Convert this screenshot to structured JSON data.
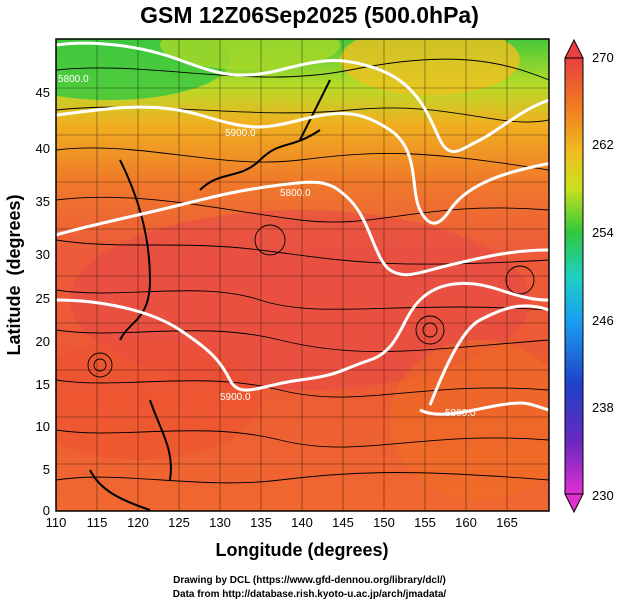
{
  "title": "GSM 12Z06Sep2025 (500.0hPa)",
  "xlabel": "Longitude (degrees)",
  "ylabel": "Latitude  (degrees)",
  "x_ticks": [
    "110",
    "115",
    "120",
    "125",
    "130",
    "135",
    "140",
    "145",
    "150",
    "155",
    "160",
    "165"
  ],
  "y_ticks": [
    "0",
    "5",
    "10",
    "15",
    "20",
    "25",
    "30",
    "35",
    "40",
    "45"
  ],
  "colorbar_ticks": [
    "230",
    "238",
    "246",
    "254",
    "262",
    "270"
  ],
  "contour_labels": [
    "5800.0",
    "5900.0",
    "5800.0",
    "5900.0",
    "5800.0",
    "5900.0",
    "5800.0"
  ],
  "footer": {
    "line1": "Drawing by DCL (https://www.gfd-dennou.org/library/dcl/)",
    "line2": "Data from http://database.rish.kyoto-u.ac.jp/arch/jmadata/"
  },
  "chart_data": {
    "type": "heatmap",
    "variable": "500hPa temperature with geopotential height contours and wind streamlines",
    "xlim": [
      110,
      170
    ],
    "ylim": [
      0,
      50
    ],
    "colorbar_range": [
      230,
      270
    ],
    "colorbar_ticks": [
      230,
      238,
      246,
      254,
      262,
      270
    ],
    "contour_levels": [
      5800,
      5900
    ],
    "colors": {
      "low": "#d81acb",
      "blue": "#2040c8",
      "cyan": "#2ad0ff",
      "green": "#30c83a",
      "yellow": "#e8e010",
      "orange": "#f09818",
      "red": "#e84e3c",
      "high": "#e4563c"
    }
  }
}
